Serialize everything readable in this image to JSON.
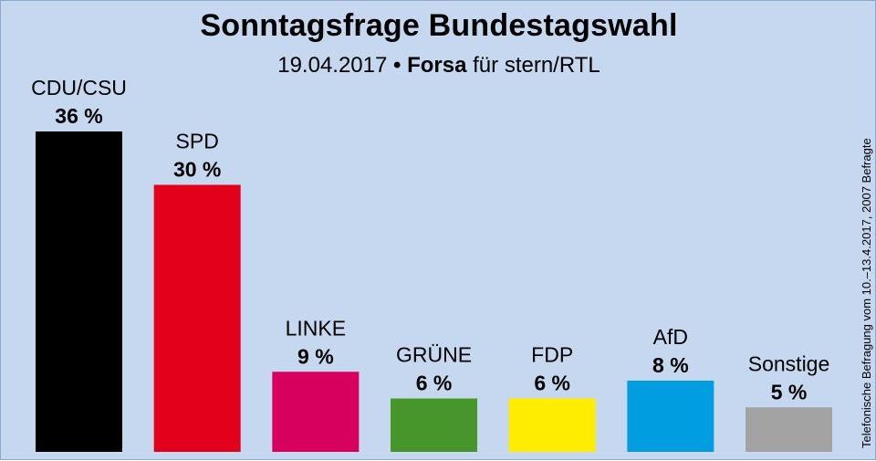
{
  "header": {
    "title": "Sonntagsfrage Bundestagswahl",
    "subtitle_date": "19.04.2017",
    "subtitle_bullet": "•",
    "subtitle_pollster": "Forsa",
    "subtitle_client": "für stern/RTL"
  },
  "side_note": "Telefonische Befragung vom 10.–13.4.2017, 2007 Befragte",
  "chart_data": {
    "type": "bar",
    "title": "Sonntagsfrage Bundestagswahl",
    "subtitle": "19.04.2017 • Forsa für stern/RTL",
    "xlabel": "",
    "ylabel": "",
    "ylim": [
      0,
      36
    ],
    "grid": false,
    "legend": "none",
    "categories": [
      "CDU/CSU",
      "SPD",
      "LINKE",
      "GRÜNE",
      "FDP",
      "AfD",
      "Sonstige"
    ],
    "values": [
      36,
      30,
      9,
      6,
      6,
      8,
      5
    ],
    "value_labels": [
      "36 %",
      "30 %",
      "9 %",
      "6 %",
      "6 %",
      "8 %",
      "5 %"
    ],
    "colors": [
      "#000000",
      "#e2001a",
      "#d8005e",
      "#46962b",
      "#ffed00",
      "#009ee0",
      "#a3a3a3"
    ]
  }
}
